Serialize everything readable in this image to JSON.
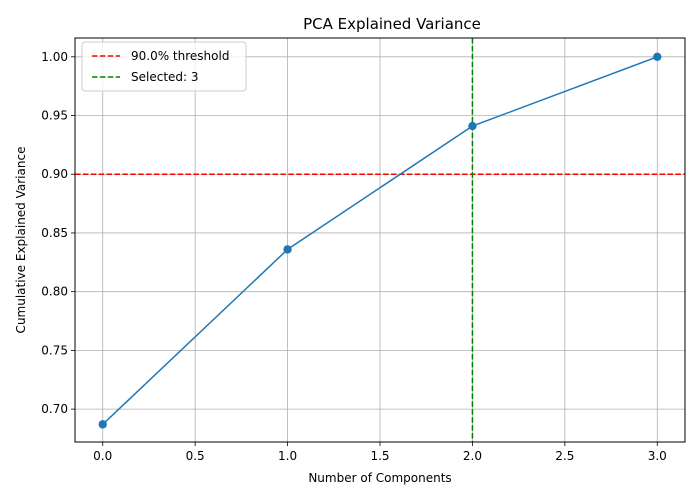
{
  "chart_data": {
    "type": "line",
    "title": "PCA Explained Variance",
    "xlabel": "Number of Components",
    "ylabel": "Cumulative Explained Variance",
    "x": [
      0,
      1,
      2,
      3
    ],
    "series": [
      {
        "name": "",
        "values": [
          0.687,
          0.836,
          0.941,
          1.0
        ],
        "color": "#1f77b4",
        "marker": "circle"
      }
    ],
    "xlim": [
      -0.15,
      3.15
    ],
    "ylim": [
      0.672,
      1.016
    ],
    "xticks": [
      0.0,
      0.5,
      1.0,
      1.5,
      2.0,
      2.5,
      3.0
    ],
    "xtick_labels": [
      "0.0",
      "0.5",
      "1.0",
      "1.5",
      "2.0",
      "2.5",
      "3.0"
    ],
    "yticks": [
      0.7,
      0.75,
      0.8,
      0.85,
      0.9,
      0.95,
      1.0
    ],
    "ytick_labels": [
      "0.70",
      "0.75",
      "0.80",
      "0.85",
      "0.90",
      "0.95",
      "1.00"
    ],
    "grid": true,
    "reference_lines": [
      {
        "orientation": "horizontal",
        "value": 0.9,
        "color": "#ff0000",
        "style": "dashed",
        "label": "90.0% threshold"
      },
      {
        "orientation": "vertical",
        "value": 2,
        "color": "#008000",
        "style": "dashed",
        "label": "Selected: 3"
      }
    ],
    "legend": {
      "placement": "top-left",
      "entries": [
        "90.0% threshold",
        "Selected: 3"
      ]
    }
  }
}
